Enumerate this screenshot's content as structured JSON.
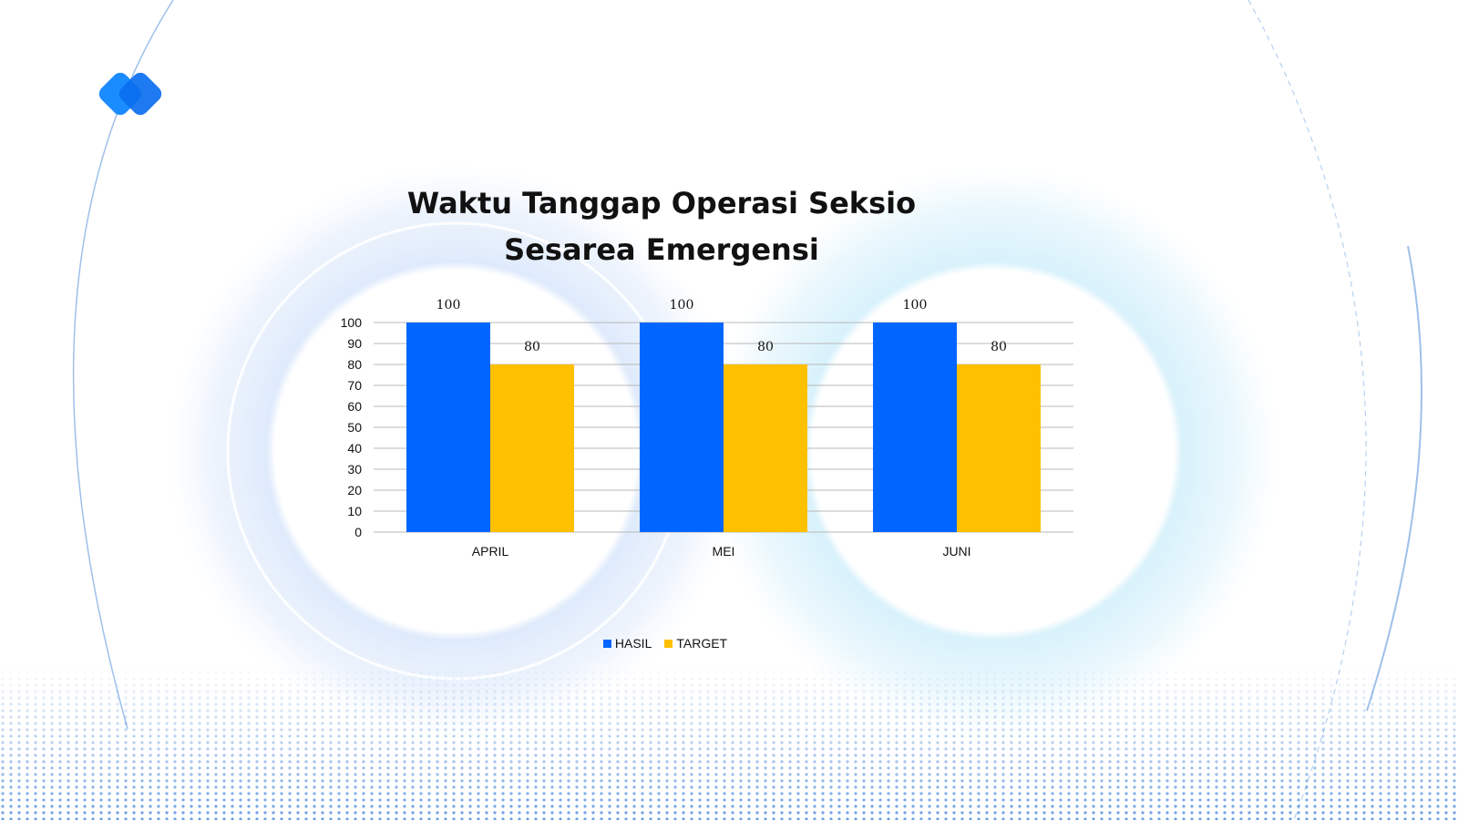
{
  "colors": {
    "hasil": "#0066FF",
    "target": "#FFC000",
    "grid": "#B8B8B8",
    "text": "#111111"
  },
  "logo": {
    "icon": "double-diamond-logo-icon"
  },
  "chart_data": {
    "type": "bar",
    "title": "Waktu Tanggap Operasi Seksio Sesarea Emergensi",
    "categories": [
      "APRIL",
      "MEI",
      "JUNI"
    ],
    "series": [
      {
        "name": "HASIL",
        "values": [
          100,
          100,
          100
        ],
        "color": "#0066FF"
      },
      {
        "name": "TARGET",
        "values": [
          80,
          80,
          80
        ],
        "color": "#FFC000"
      }
    ],
    "ylim": [
      0,
      100
    ],
    "yticks": [
      "0",
      "10",
      "20",
      "30",
      "40",
      "50",
      "60",
      "70",
      "80",
      "90",
      "100"
    ],
    "data_labels": true,
    "grid": true,
    "legend": "bottom-center"
  }
}
